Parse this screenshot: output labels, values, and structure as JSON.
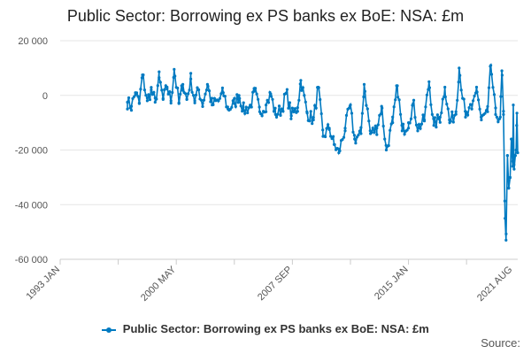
{
  "chart_data": {
    "type": "line",
    "title": "Public Sector: Borrowing ex PS banks ex BoE: NSA: £m",
    "xlabel": "",
    "ylabel": "",
    "x_tick_labels": [
      "1993 JAN",
      "2000 MAY",
      "2007 SEP",
      "2015 JAN",
      "2021 AUG"
    ],
    "x_tick_positions_year": [
      1993.0,
      2000.33,
      2007.67,
      2015.0,
      2021.58
    ],
    "x_range": [
      1993.0,
      2021.9
    ],
    "ylim": [
      -60000,
      20000
    ],
    "y_ticks": [
      20000,
      0,
      -20000,
      -40000,
      -60000
    ],
    "y_tick_labels": [
      "20 000",
      "0",
      "-20 000",
      "-40 000",
      "-60 000"
    ],
    "grid": true,
    "legend_position": "bottom",
    "series": [
      {
        "name": "Public Sector: Borrowing ex PS banks ex BoE: NSA: £m",
        "color": "#007ac1",
        "x_start": 1997.25,
        "x_step": 0.0833333,
        "keypoints": [
          [
            1997.25,
            -2500
          ],
          [
            1997.5,
            -4000
          ],
          [
            1997.75,
            1000
          ],
          [
            1998.0,
            -3000
          ],
          [
            1998.2,
            7500
          ],
          [
            1998.5,
            -2000
          ],
          [
            1998.75,
            2000
          ],
          [
            1999.0,
            -2500
          ],
          [
            1999.25,
            6500
          ],
          [
            1999.5,
            -1500
          ],
          [
            1999.75,
            3000
          ],
          [
            2000.0,
            -2000
          ],
          [
            2000.2,
            9500
          ],
          [
            2000.5,
            -3000
          ],
          [
            2000.75,
            4000
          ],
          [
            2001.0,
            -1500
          ],
          [
            2001.25,
            6000
          ],
          [
            2001.5,
            -2000
          ],
          [
            2001.75,
            2000
          ],
          [
            2002.0,
            -3000
          ],
          [
            2002.3,
            4000
          ],
          [
            2002.6,
            -3500
          ],
          [
            2003.0,
            -2000
          ],
          [
            2003.3,
            1000
          ],
          [
            2003.6,
            -5000
          ],
          [
            2004.0,
            -3000
          ],
          [
            2004.3,
            0
          ],
          [
            2004.6,
            -5500
          ],
          [
            2005.0,
            -4000
          ],
          [
            2005.3,
            1500
          ],
          [
            2005.6,
            -6000
          ],
          [
            2006.0,
            -3500
          ],
          [
            2006.3,
            500
          ],
          [
            2006.6,
            -7000
          ],
          [
            2007.0,
            -5000
          ],
          [
            2007.3,
            1000
          ],
          [
            2007.6,
            -7500
          ],
          [
            2008.0,
            -4500
          ],
          [
            2008.2,
            5500
          ],
          [
            2008.6,
            -6500
          ],
          [
            2009.0,
            -9000
          ],
          [
            2009.3,
            3000
          ],
          [
            2009.6,
            -15000
          ],
          [
            2010.0,
            -12000
          ],
          [
            2010.3,
            -18000
          ],
          [
            2010.6,
            -21000
          ],
          [
            2011.0,
            -12000
          ],
          [
            2011.3,
            -4000
          ],
          [
            2011.6,
            -16000
          ],
          [
            2012.0,
            -14000
          ],
          [
            2012.2,
            4000
          ],
          [
            2012.6,
            -14000
          ],
          [
            2013.0,
            -12000
          ],
          [
            2013.3,
            -4000
          ],
          [
            2013.6,
            -20000
          ],
          [
            2014.0,
            -10000
          ],
          [
            2014.3,
            3500
          ],
          [
            2014.6,
            -13000
          ],
          [
            2015.0,
            -10000
          ],
          [
            2015.3,
            -3000
          ],
          [
            2015.6,
            -12000
          ],
          [
            2016.0,
            -9000
          ],
          [
            2016.3,
            5000
          ],
          [
            2016.6,
            -11000
          ],
          [
            2017.0,
            -8000
          ],
          [
            2017.3,
            3000
          ],
          [
            2017.6,
            -10000
          ],
          [
            2018.0,
            -6000
          ],
          [
            2018.2,
            10000
          ],
          [
            2018.6,
            -8000
          ],
          [
            2019.0,
            -5000
          ],
          [
            2019.3,
            3000
          ],
          [
            2019.6,
            -9000
          ],
          [
            2020.0,
            -6000
          ],
          [
            2020.2,
            11000
          ],
          [
            2020.5,
            -7000
          ],
          [
            2020.8,
            -8000
          ],
          [
            2020.9,
            9000
          ],
          [
            2021.0,
            -7000
          ],
          [
            2021.1,
            -45000
          ],
          [
            2021.16,
            -53000
          ],
          [
            2021.25,
            -22000
          ],
          [
            2021.33,
            -34000
          ],
          [
            2021.42,
            -30000
          ],
          [
            2021.5,
            -16000
          ],
          [
            2021.58,
            -26000
          ],
          [
            2021.62,
            -3500
          ],
          [
            2021.67,
            -27000
          ],
          [
            2021.75,
            -22000
          ],
          [
            2021.8,
            -20000
          ],
          [
            2021.85,
            -6500
          ],
          [
            2021.9,
            -21000
          ]
        ]
      }
    ]
  },
  "source_label": "Source:"
}
